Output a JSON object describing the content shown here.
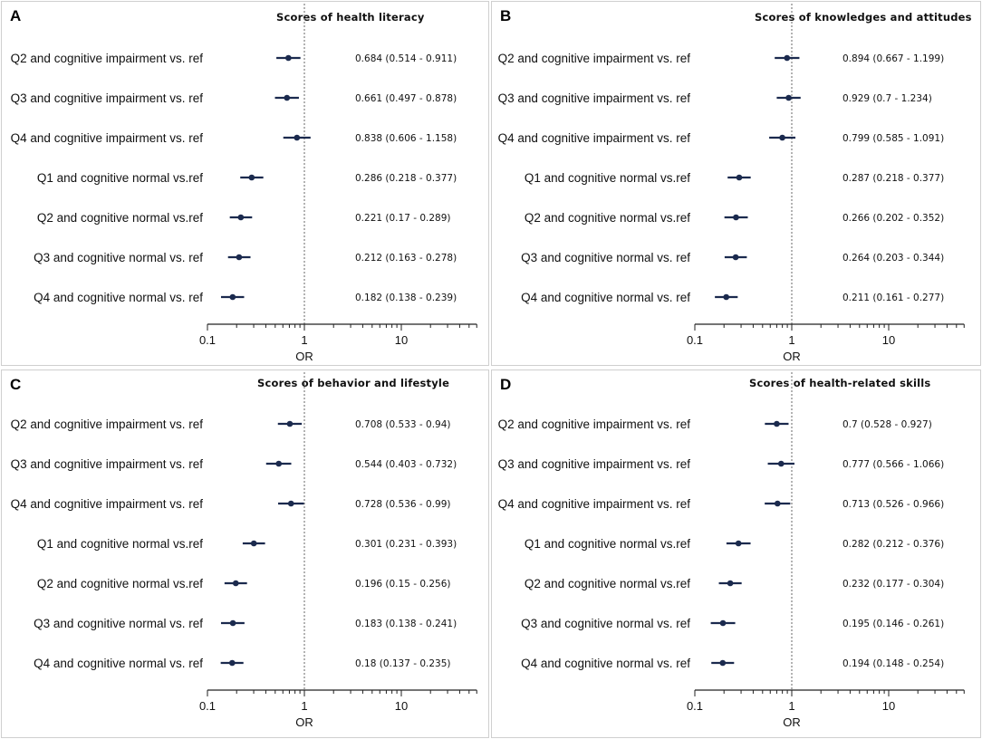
{
  "figure": {
    "x_axis_label": "OR",
    "reference_line_at": 1
  },
  "chart_data": [
    {
      "type": "forest",
      "panel": "A",
      "title": "Scores of health literacy",
      "xlabel": "OR",
      "xscale": "log",
      "xticks": [
        "0.1",
        "1",
        "10"
      ],
      "tick_values": [
        0.1,
        1,
        10
      ],
      "xlim": [
        0.1,
        60
      ],
      "reference_line": 1,
      "rows": [
        {
          "label": "Q2 and cognitive impairment vs. ref",
          "or": 0.684,
          "lo": 0.514,
          "hi": 0.911,
          "text": "0.684 (0.514 - 0.911)"
        },
        {
          "label": "Q3 and cognitive impairment vs. ref",
          "or": 0.661,
          "lo": 0.497,
          "hi": 0.878,
          "text": "0.661 (0.497 - 0.878)"
        },
        {
          "label": "Q4 and cognitive impairment vs. ref",
          "or": 0.838,
          "lo": 0.606,
          "hi": 1.158,
          "text": "0.838 (0.606 - 1.158)"
        },
        {
          "label": "Q1 and cognitive normal vs.ref",
          "or": 0.286,
          "lo": 0.218,
          "hi": 0.377,
          "text": "0.286 (0.218 - 0.377)"
        },
        {
          "label": "Q2 and cognitive normal vs.ref",
          "or": 0.221,
          "lo": 0.17,
          "hi": 0.289,
          "text": "0.221 (0.17 - 0.289)"
        },
        {
          "label": "Q3 and cognitive normal vs. ref",
          "or": 0.212,
          "lo": 0.163,
          "hi": 0.278,
          "text": "0.212 (0.163 - 0.278)"
        },
        {
          "label": "Q4 and cognitive normal vs. ref",
          "or": 0.182,
          "lo": 0.138,
          "hi": 0.239,
          "text": "0.182 (0.138 - 0.239)"
        }
      ]
    },
    {
      "type": "forest",
      "panel": "B",
      "title": "Scores of knowledges and attitudes",
      "xlabel": "OR",
      "xscale": "log",
      "xticks": [
        "0.1",
        "1",
        "10"
      ],
      "tick_values": [
        0.1,
        1,
        10
      ],
      "xlim": [
        0.1,
        60
      ],
      "reference_line": 1,
      "rows": [
        {
          "label": "Q2 and cognitive impairment vs. ref",
          "or": 0.894,
          "lo": 0.667,
          "hi": 1.199,
          "text": "0.894 (0.667 - 1.199)"
        },
        {
          "label": "Q3 and cognitive impairment vs. ref",
          "or": 0.929,
          "lo": 0.7,
          "hi": 1.234,
          "text": "0.929 (0.7 - 1.234)"
        },
        {
          "label": "Q4 and cognitive impairment vs. ref",
          "or": 0.799,
          "lo": 0.585,
          "hi": 1.091,
          "text": "0.799 (0.585 - 1.091)"
        },
        {
          "label": "Q1 and cognitive normal vs.ref",
          "or": 0.287,
          "lo": 0.218,
          "hi": 0.377,
          "text": "0.287 (0.218 - 0.377)"
        },
        {
          "label": "Q2 and cognitive normal vs.ref",
          "or": 0.266,
          "lo": 0.202,
          "hi": 0.352,
          "text": "0.266 (0.202 - 0.352)"
        },
        {
          "label": "Q3 and cognitive normal vs. ref",
          "or": 0.264,
          "lo": 0.203,
          "hi": 0.344,
          "text": "0.264 (0.203 - 0.344)"
        },
        {
          "label": "Q4 and cognitive normal vs. ref",
          "or": 0.211,
          "lo": 0.161,
          "hi": 0.277,
          "text": "0.211 (0.161 - 0.277)"
        }
      ]
    },
    {
      "type": "forest",
      "panel": "C",
      "title": "Scores of behavior and lifestyle",
      "xlabel": "OR",
      "xscale": "log",
      "xticks": [
        "0.1",
        "1",
        "10"
      ],
      "tick_values": [
        0.1,
        1,
        10
      ],
      "xlim": [
        0.1,
        60
      ],
      "reference_line": 1,
      "rows": [
        {
          "label": "Q2 and cognitive impairment vs. ref",
          "or": 0.708,
          "lo": 0.533,
          "hi": 0.94,
          "text": "0.708 (0.533 - 0.94)"
        },
        {
          "label": "Q3 and cognitive impairment vs. ref",
          "or": 0.544,
          "lo": 0.403,
          "hi": 0.732,
          "text": "0.544 (0.403 - 0.732)"
        },
        {
          "label": "Q4 and cognitive impairment vs. ref",
          "or": 0.728,
          "lo": 0.536,
          "hi": 0.99,
          "text": "0.728 (0.536 - 0.99)"
        },
        {
          "label": "Q1 and cognitive normal vs.ref",
          "or": 0.301,
          "lo": 0.231,
          "hi": 0.393,
          "text": "0.301 (0.231 - 0.393)"
        },
        {
          "label": "Q2 and cognitive normal vs.ref",
          "or": 0.196,
          "lo": 0.15,
          "hi": 0.256,
          "text": "0.196 (0.15 - 0.256)"
        },
        {
          "label": "Q3 and cognitive normal vs. ref",
          "or": 0.183,
          "lo": 0.138,
          "hi": 0.241,
          "text": "0.183 (0.138 - 0.241)"
        },
        {
          "label": "Q4 and cognitive normal vs. ref",
          "or": 0.18,
          "lo": 0.137,
          "hi": 0.235,
          "text": "0.18 (0.137 - 0.235)"
        }
      ]
    },
    {
      "type": "forest",
      "panel": "D",
      "title": "Scores of health-related skills",
      "xlabel": "OR",
      "xscale": "log",
      "xticks": [
        "0.1",
        "1",
        "10"
      ],
      "tick_values": [
        0.1,
        1,
        10
      ],
      "xlim": [
        0.1,
        60
      ],
      "reference_line": 1,
      "rows": [
        {
          "label": "Q2 and cognitive impairment vs. ref",
          "or": 0.7,
          "lo": 0.528,
          "hi": 0.927,
          "text": "0.7 (0.528 - 0.927)"
        },
        {
          "label": "Q3 and cognitive impairment vs. ref",
          "or": 0.777,
          "lo": 0.566,
          "hi": 1.066,
          "text": "0.777 (0.566 - 1.066)"
        },
        {
          "label": "Q4 and cognitive impairment vs. ref",
          "or": 0.713,
          "lo": 0.526,
          "hi": 0.966,
          "text": "0.713 (0.526 - 0.966)"
        },
        {
          "label": "Q1 and cognitive normal vs.ref",
          "or": 0.282,
          "lo": 0.212,
          "hi": 0.376,
          "text": "0.282 (0.212 - 0.376)"
        },
        {
          "label": "Q2 and cognitive normal vs.ref",
          "or": 0.232,
          "lo": 0.177,
          "hi": 0.304,
          "text": "0.232 (0.177 - 0.304)"
        },
        {
          "label": "Q3 and cognitive normal vs. ref",
          "or": 0.195,
          "lo": 0.146,
          "hi": 0.261,
          "text": "0.195 (0.146 - 0.261)"
        },
        {
          "label": "Q4 and cognitive normal vs. ref",
          "or": 0.194,
          "lo": 0.148,
          "hi": 0.254,
          "text": "0.194 (0.148 - 0.254)"
        }
      ]
    }
  ],
  "colors": {
    "marker": "#1b2a4e",
    "reference_line": "#8a8a8a",
    "axis": "#222222",
    "panel_border": "#cfcfcf"
  }
}
